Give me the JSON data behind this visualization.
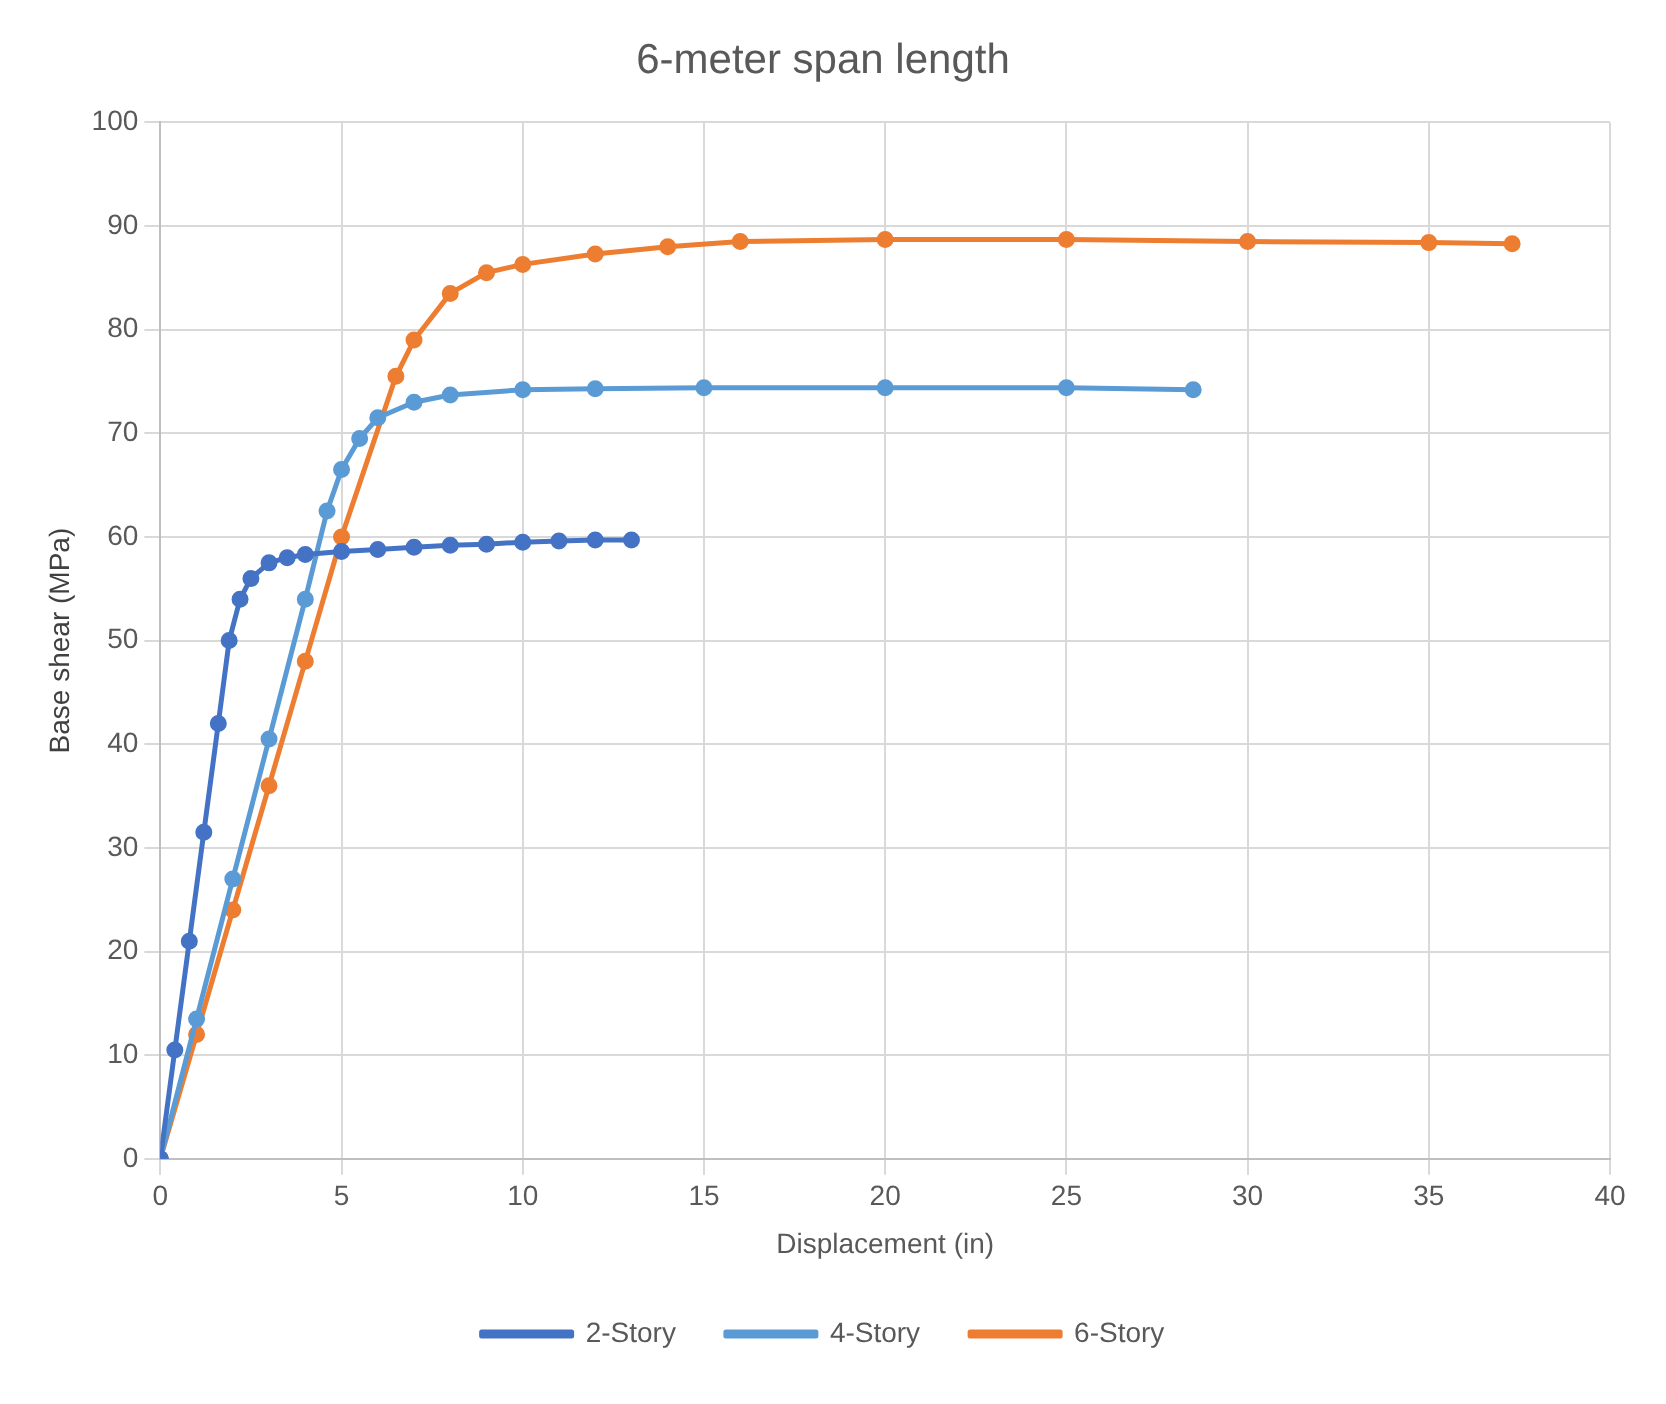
{
  "chart_data": {
    "type": "line",
    "title": "6-meter span length",
    "xlabel": "Displacement (in)",
    "ylabel": "Base shear (MPa)",
    "xlim": [
      0,
      40
    ],
    "xticks": [
      0,
      5,
      10,
      15,
      20,
      25,
      30,
      35,
      40
    ],
    "ylim": [
      0,
      100
    ],
    "yticks": [
      0,
      10,
      20,
      30,
      40,
      50,
      60,
      70,
      80,
      90,
      100
    ],
    "grid": true,
    "legend": "bottom",
    "marker": "circle",
    "line_style": "solid",
    "series": [
      {
        "name": "2-Story",
        "color": "#4472c4",
        "x": [
          0,
          0.4,
          0.8,
          1.2,
          1.6,
          1.9,
          2.2,
          2.5,
          3,
          3.5,
          4,
          5,
          6,
          7,
          8,
          9,
          10,
          11,
          12,
          13
        ],
        "values": [
          0,
          10.5,
          21,
          31.5,
          42,
          50,
          54,
          56,
          57.5,
          58,
          58.3,
          58.6,
          58.8,
          59,
          59.2,
          59.3,
          59.5,
          59.6,
          59.7,
          59.7
        ]
      },
      {
        "name": "4-Story",
        "color": "#5b9bd5",
        "x": [
          0,
          1,
          2,
          3,
          4,
          4.6,
          5,
          5.5,
          6,
          7,
          8,
          10,
          12,
          15,
          20,
          25,
          28.5
        ],
        "values": [
          0,
          13.5,
          27,
          40.5,
          54,
          62.5,
          66.5,
          69.5,
          71.5,
          73,
          73.7,
          74.2,
          74.3,
          74.4,
          74.4,
          74.4,
          74.2
        ]
      },
      {
        "name": "6-Story",
        "color": "#ed7d31",
        "x": [
          0,
          1,
          2,
          3,
          4,
          5,
          6.5,
          7,
          8,
          9,
          10,
          12,
          14,
          16,
          20,
          25,
          30,
          35,
          37.3
        ],
        "values": [
          0,
          12,
          24,
          36,
          48,
          60,
          75.5,
          79,
          83.5,
          85.5,
          86.3,
          87.3,
          88,
          88.5,
          88.7,
          88.7,
          88.5,
          88.4,
          88.3
        ]
      }
    ]
  }
}
